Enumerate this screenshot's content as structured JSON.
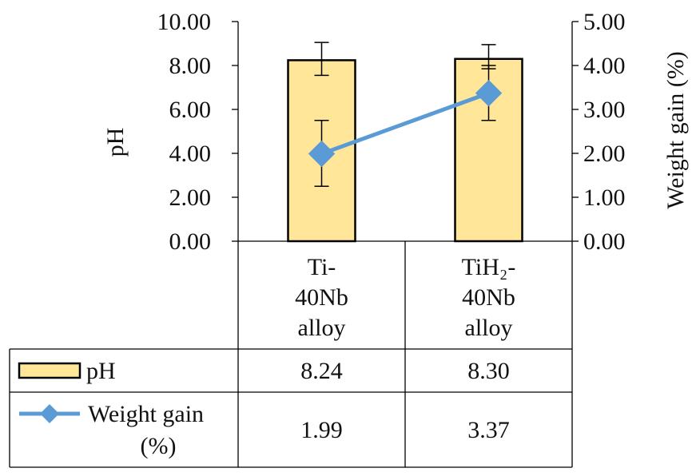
{
  "chart_data": {
    "type": "bar",
    "categories": [
      {
        "lines": [
          "Ti-",
          "40Nb",
          "alloy"
        ]
      },
      {
        "lines": [
          "TiH₂-",
          "40Nb",
          "alloy"
        ]
      }
    ],
    "left_axis": {
      "label": "pH",
      "ylim": [
        0,
        10
      ],
      "ticks": [
        "0.00",
        "2.00",
        "4.00",
        "6.00",
        "8.00",
        "10.00"
      ]
    },
    "right_axis": {
      "label": "Weight gain (%)",
      "ylim": [
        0,
        5
      ],
      "ticks": [
        "0.00",
        "1.00",
        "2.00",
        "3.00",
        "4.00",
        "5.00"
      ]
    },
    "series": [
      {
        "name": "pH",
        "kind": "bar",
        "axis": "left",
        "values": [
          8.24,
          8.3
        ],
        "value_labels": [
          "8.24",
          "8.30"
        ],
        "error_low": [
          7.55,
          7.85
        ],
        "error_high": [
          9.05,
          8.95
        ],
        "color": "#FFE699",
        "stroke": "#000000"
      },
      {
        "name_lines": [
          "Weight gain",
          "(%)"
        ],
        "kind": "line",
        "axis": "right",
        "values": [
          1.99,
          3.37
        ],
        "value_labels": [
          "1.99",
          "3.37"
        ],
        "error_low": [
          1.25,
          2.75
        ],
        "error_high": [
          2.75,
          4.0
        ],
        "color": "#5B9BD5",
        "marker": "diamond"
      }
    ],
    "grid": false,
    "legend": "data-table"
  }
}
